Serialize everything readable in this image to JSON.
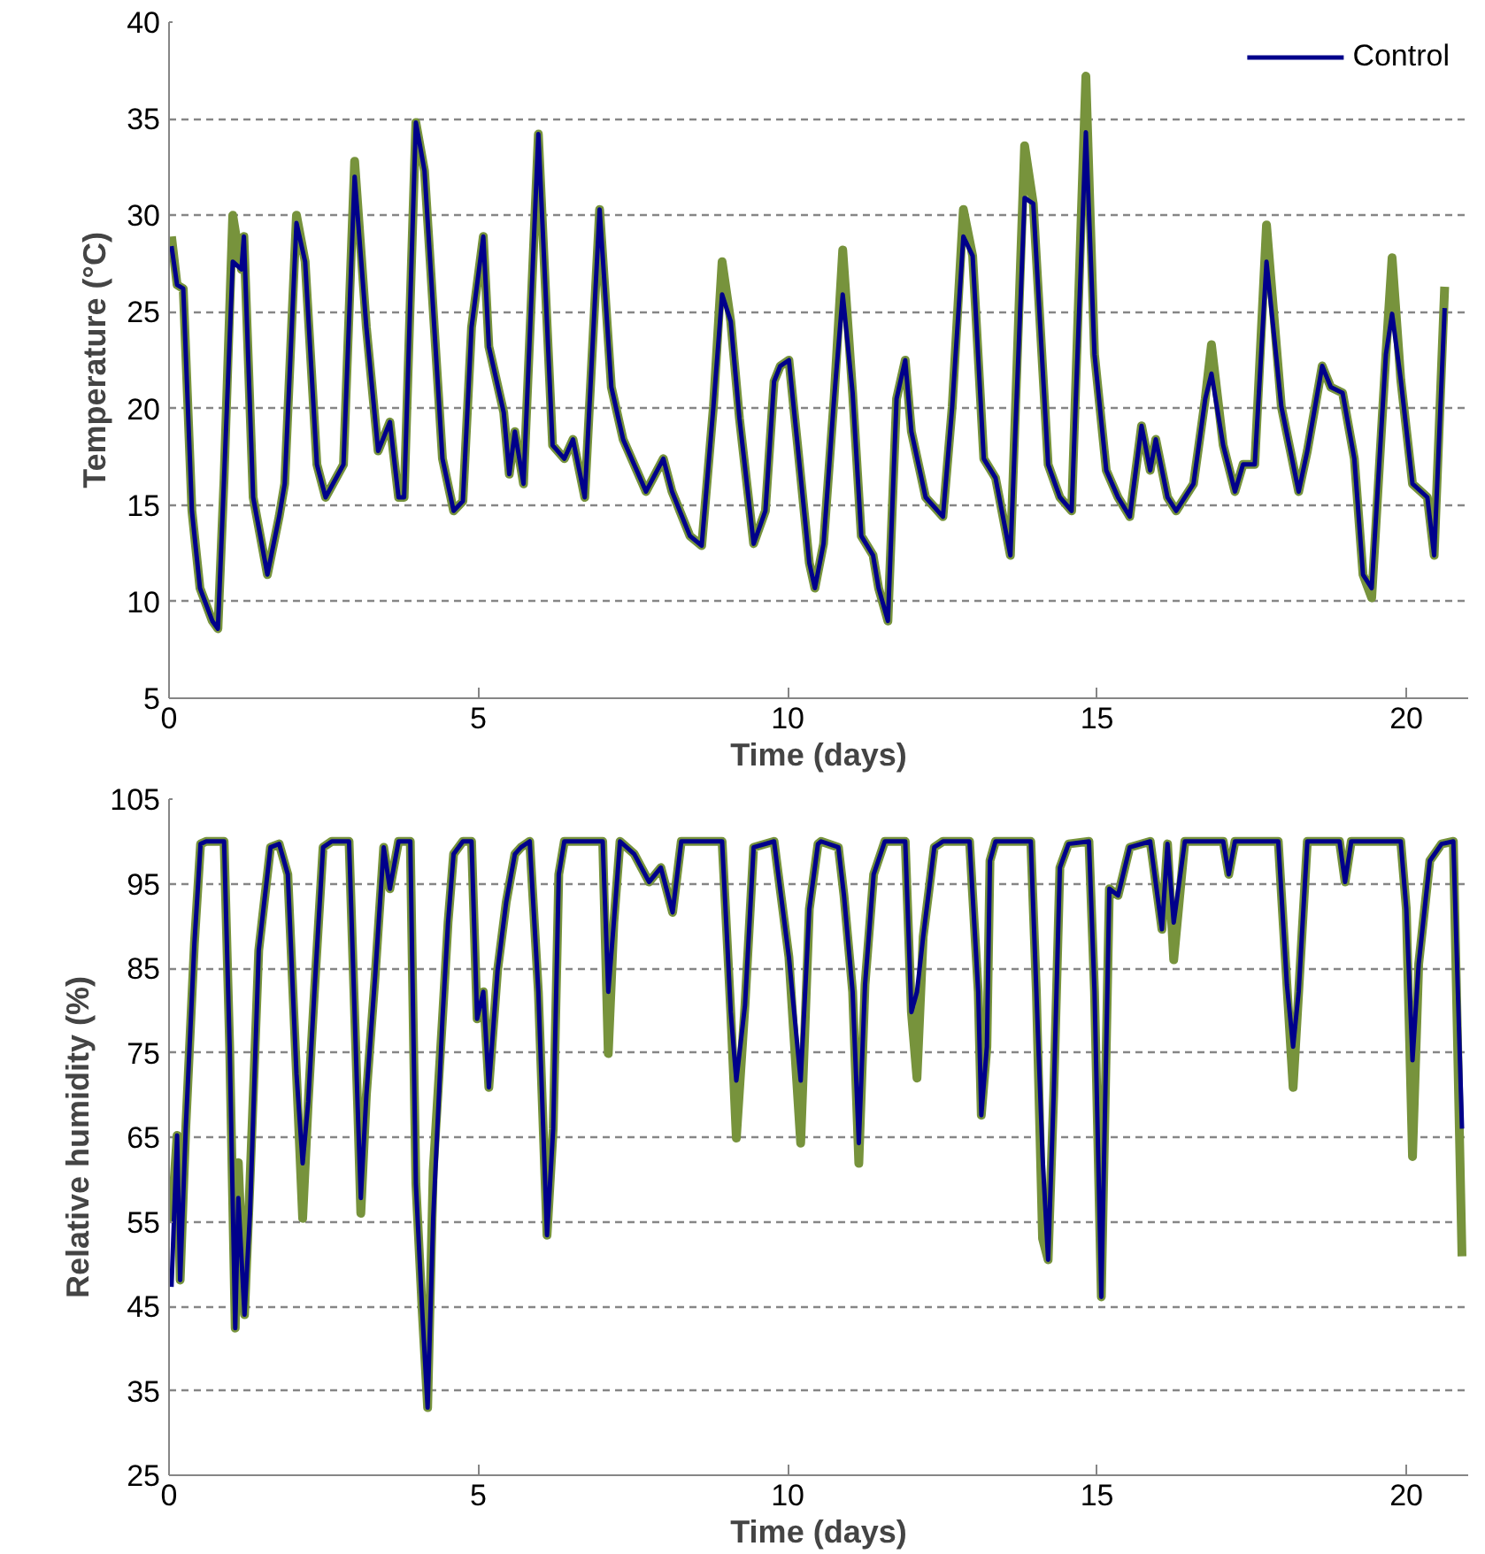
{
  "chart_data": [
    {
      "type": "line",
      "xlabel": "Time (days)",
      "ylabel": "Temperature (°C)",
      "xlim": [
        0,
        21
      ],
      "xticks": [
        0,
        5,
        10,
        15,
        20
      ],
      "ylim": [
        5,
        40
      ],
      "yticks": [
        5,
        10,
        15,
        20,
        25,
        30,
        35,
        40
      ],
      "grid": "y",
      "legend": "top right",
      "line_style": "solid",
      "marker": "none",
      "x": [
        0.04,
        0.13,
        0.23,
        0.37,
        0.5,
        0.7,
        0.79,
        0.89,
        1.03,
        1.17,
        1.21,
        1.36,
        1.59,
        1.78,
        1.87,
        2.06,
        2.2,
        2.39,
        2.53,
        2.82,
        3.0,
        3.19,
        3.38,
        3.57,
        3.71,
        3.8,
        3.99,
        4.13,
        4.42,
        4.6,
        4.75,
        4.89,
        5.08,
        5.17,
        5.41,
        5.5,
        5.59,
        5.73,
        5.97,
        6.2,
        6.39,
        6.53,
        6.72,
        6.96,
        7.15,
        7.34,
        7.71,
        7.99,
        8.13,
        8.42,
        8.61,
        8.8,
        8.94,
        9.08,
        9.22,
        9.45,
        9.64,
        9.78,
        9.88,
        10.02,
        10.16,
        10.35,
        10.44,
        10.58,
        10.75,
        10.89,
        11.05,
        11.19,
        11.38,
        11.47,
        11.62,
        11.76,
        11.9,
        12.0,
        12.23,
        12.51,
        12.66,
        12.84,
        12.99,
        13.17,
        13.36,
        13.6,
        13.83,
        13.97,
        14.21,
        14.4,
        14.59,
        14.82,
        14.96,
        15.15,
        15.34,
        15.53,
        15.72,
        15.86,
        15.95,
        16.14,
        16.28,
        16.56,
        16.75,
        16.85,
        17.04,
        17.23,
        17.36,
        17.55,
        17.74,
        17.98,
        18.26,
        18.4,
        18.64,
        18.78,
        18.97,
        19.16,
        19.3,
        19.44,
        19.67,
        19.77,
        19.91,
        20.1,
        20.34,
        20.45,
        20.62
      ],
      "series": [
        {
          "color": "#77933c",
          "values": [
            28.9,
            26.4,
            26.2,
            14.7,
            10.7,
            9.0,
            8.6,
            16.4,
            30.0,
            27.2,
            28.9,
            15.4,
            11.4,
            14.4,
            16.1,
            30.0,
            27.6,
            17.1,
            15.4,
            17.1,
            32.8,
            24.2,
            17.8,
            19.3,
            15.4,
            15.4,
            34.8,
            32.3,
            17.4,
            14.7,
            15.2,
            24.2,
            28.9,
            23.2,
            19.8,
            16.6,
            18.8,
            16.1,
            34.2,
            18.1,
            17.4,
            18.4,
            15.4,
            30.3,
            21.1,
            18.4,
            15.7,
            17.4,
            15.7,
            13.4,
            12.9,
            20.1,
            27.6,
            24.5,
            19.5,
            13.0,
            14.7,
            21.4,
            22.2,
            22.5,
            18.1,
            12.0,
            10.7,
            13.0,
            20.5,
            28.2,
            20.8,
            13.4,
            12.4,
            10.7,
            9.0,
            20.5,
            22.5,
            18.8,
            15.4,
            14.4,
            20.1,
            30.3,
            27.9,
            17.4,
            16.4,
            12.4,
            33.6,
            30.6,
            17.1,
            15.4,
            14.7,
            37.2,
            22.8,
            16.8,
            15.4,
            14.4,
            19.1,
            16.8,
            18.4,
            15.4,
            14.7,
            16.1,
            20.5,
            23.3,
            18.1,
            15.7,
            17.1,
            17.1,
            29.5,
            20.1,
            15.7,
            17.8,
            22.2,
            21.1,
            20.8,
            17.4,
            11.4,
            10.2,
            22.8,
            27.8,
            21.5,
            16.1,
            15.4,
            12.4,
            26.3
          ]
        },
        {
          "name": "Control",
          "color": "#00008b",
          "values": [
            28.4,
            26.4,
            26.2,
            14.7,
            10.7,
            9.0,
            8.6,
            16.4,
            27.6,
            27.2,
            28.9,
            15.4,
            11.4,
            14.4,
            16.1,
            29.6,
            27.6,
            17.1,
            15.4,
            17.1,
            32.0,
            24.2,
            17.8,
            19.3,
            15.4,
            15.4,
            34.8,
            32.3,
            17.4,
            14.7,
            15.2,
            24.2,
            28.9,
            23.2,
            19.8,
            16.6,
            18.8,
            16.1,
            34.2,
            18.1,
            17.4,
            18.4,
            15.4,
            30.3,
            21.1,
            18.4,
            15.7,
            17.4,
            15.7,
            13.4,
            12.9,
            20.1,
            25.9,
            24.5,
            19.5,
            13.0,
            14.7,
            21.4,
            22.2,
            22.5,
            18.1,
            12.0,
            10.7,
            13.0,
            20.5,
            25.9,
            20.8,
            13.4,
            12.4,
            10.7,
            9.0,
            20.5,
            22.5,
            18.8,
            15.4,
            14.4,
            20.1,
            28.9,
            27.9,
            17.4,
            16.4,
            12.4,
            30.9,
            30.6,
            17.1,
            15.4,
            14.7,
            34.3,
            22.8,
            16.8,
            15.4,
            14.4,
            19.1,
            16.8,
            18.4,
            15.4,
            14.7,
            16.1,
            20.5,
            21.8,
            18.1,
            15.7,
            17.1,
            17.1,
            27.6,
            20.1,
            15.7,
            17.8,
            22.2,
            21.1,
            20.8,
            17.4,
            11.4,
            10.7,
            22.8,
            24.9,
            21.5,
            16.1,
            15.4,
            12.4,
            25.2
          ]
        }
      ]
    },
    {
      "type": "line",
      "xlabel": "Time (days)",
      "ylabel": "Relative humidity (%)",
      "xlim": [
        0,
        21
      ],
      "xticks": [
        0,
        5,
        10,
        15,
        20
      ],
      "ylim": [
        25,
        105
      ],
      "yticks": [
        25,
        35,
        45,
        55,
        65,
        75,
        85,
        95,
        105
      ],
      "grid": "y",
      "line_style": "solid",
      "marker": "none",
      "x": [
        0.04,
        0.13,
        0.18,
        0.27,
        0.41,
        0.51,
        0.6,
        0.89,
        0.98,
        1.07,
        1.12,
        1.22,
        1.31,
        1.45,
        1.64,
        1.78,
        1.92,
        2.06,
        2.16,
        2.25,
        2.35,
        2.49,
        2.63,
        2.91,
        3.05,
        3.1,
        3.19,
        3.33,
        3.47,
        3.57,
        3.71,
        3.9,
        3.99,
        4.09,
        4.18,
        4.27,
        4.42,
        4.51,
        4.6,
        4.75,
        4.89,
        4.98,
        5.08,
        5.17,
        5.31,
        5.45,
        5.59,
        5.69,
        5.83,
        5.97,
        6.11,
        6.21,
        6.3,
        6.39,
        7.01,
        7.1,
        7.19,
        7.29,
        7.52,
        7.76,
        7.95,
        8.14,
        8.28,
        8.94,
        9.08,
        9.17,
        9.31,
        9.45,
        9.78,
        10.02,
        10.21,
        10.35,
        10.49,
        10.54,
        10.82,
        10.91,
        11.05,
        11.15,
        11.25,
        11.39,
        11.57,
        11.9,
        12.0,
        12.09,
        12.19,
        12.37,
        12.51,
        12.94,
        13.08,
        13.13,
        13.22,
        13.27,
        13.36,
        13.93,
        14.02,
        14.12,
        14.21,
        14.3,
        14.4,
        14.54,
        14.87,
        14.96,
        15.07,
        15.2,
        15.34,
        15.53,
        15.86,
        16.05,
        16.14,
        16.24,
        16.42,
        17.04,
        17.13,
        17.23,
        17.93,
        18.07,
        18.17,
        18.26,
        18.4,
        18.92,
        19.01,
        19.11,
        19.91,
        20.0,
        20.1,
        20.2,
        20.38,
        20.57,
        20.76,
        20.9
      ],
      "series": [
        {
          "color": "#77933c",
          "values": [
            55.0,
            65.2,
            48.1,
            66.0,
            87.9,
            99.7,
            100,
            100,
            75.7,
            42.4,
            62.0,
            44.0,
            60.0,
            87.1,
            99.3,
            99.7,
            96.1,
            72.5,
            55.4,
            69.2,
            82.2,
            99.3,
            100,
            100,
            68.4,
            56.0,
            70.0,
            83.9,
            99.3,
            94.4,
            100,
            100,
            59.5,
            44.8,
            33.0,
            61.0,
            79.0,
            90.4,
            98.5,
            100,
            100,
            79.0,
            82.2,
            70.9,
            84.7,
            92.8,
            98.5,
            99.3,
            100,
            82.2,
            53.4,
            66.0,
            96.1,
            100,
            100,
            74.9,
            90.4,
            100,
            98.5,
            95.2,
            96.9,
            91.6,
            100,
            100,
            79.8,
            64.9,
            80.6,
            99.3,
            100,
            86.3,
            64.3,
            92.0,
            99.7,
            100,
            99.3,
            93.6,
            82.2,
            61.9,
            83.0,
            96.1,
            100,
            100,
            79.8,
            72.0,
            88.7,
            99.3,
            100,
            100,
            82.2,
            67.6,
            75.7,
            97.7,
            100,
            100,
            82.2,
            53.0,
            50.5,
            70.0,
            96.9,
            99.7,
            100,
            82.2,
            46.1,
            94.4,
            93.6,
            99.3,
            100,
            89.6,
            99.7,
            86.0,
            100,
            100,
            96.1,
            100,
            100,
            83.0,
            70.9,
            82.2,
            100,
            100,
            95.2,
            100,
            100,
            92.0,
            62.7,
            85.5,
            97.7,
            99.7,
            100,
            50.9
          ]
        },
        {
          "color": "#00008b",
          "values": [
            47.3,
            65.2,
            48.1,
            66.0,
            87.9,
            99.7,
            100,
            100,
            75.7,
            42.4,
            57.8,
            44.0,
            56.2,
            87.1,
            99.3,
            99.7,
            96.1,
            72.5,
            61.9,
            69.2,
            82.2,
            99.3,
            100,
            100,
            68.4,
            57.8,
            70.0,
            83.9,
            99.3,
            94.4,
            100,
            100,
            59.5,
            44.8,
            33.0,
            55.4,
            79.0,
            90.4,
            98.5,
            100,
            100,
            79.0,
            82.2,
            70.9,
            84.7,
            92.8,
            98.5,
            99.3,
            100,
            82.2,
            53.4,
            66.0,
            96.1,
            100,
            100,
            82.2,
            90.4,
            100,
            98.5,
            95.2,
            96.9,
            91.6,
            100,
            100,
            79.8,
            71.7,
            80.6,
            99.3,
            100,
            86.3,
            71.7,
            92.0,
            99.7,
            100,
            99.3,
            93.6,
            82.2,
            64.3,
            83.0,
            96.1,
            100,
            100,
            79.8,
            82.2,
            88.7,
            99.3,
            100,
            100,
            82.2,
            67.6,
            75.7,
            97.7,
            100,
            100,
            82.2,
            62.7,
            50.5,
            70.0,
            96.9,
            99.7,
            100,
            82.2,
            46.1,
            94.4,
            93.6,
            99.3,
            100,
            89.6,
            99.7,
            90.4,
            100,
            100,
            96.1,
            100,
            100,
            83.0,
            75.7,
            82.2,
            100,
            100,
            95.2,
            100,
            100,
            92.0,
            74.1,
            85.5,
            97.7,
            99.7,
            100,
            66.0
          ]
        }
      ]
    }
  ]
}
